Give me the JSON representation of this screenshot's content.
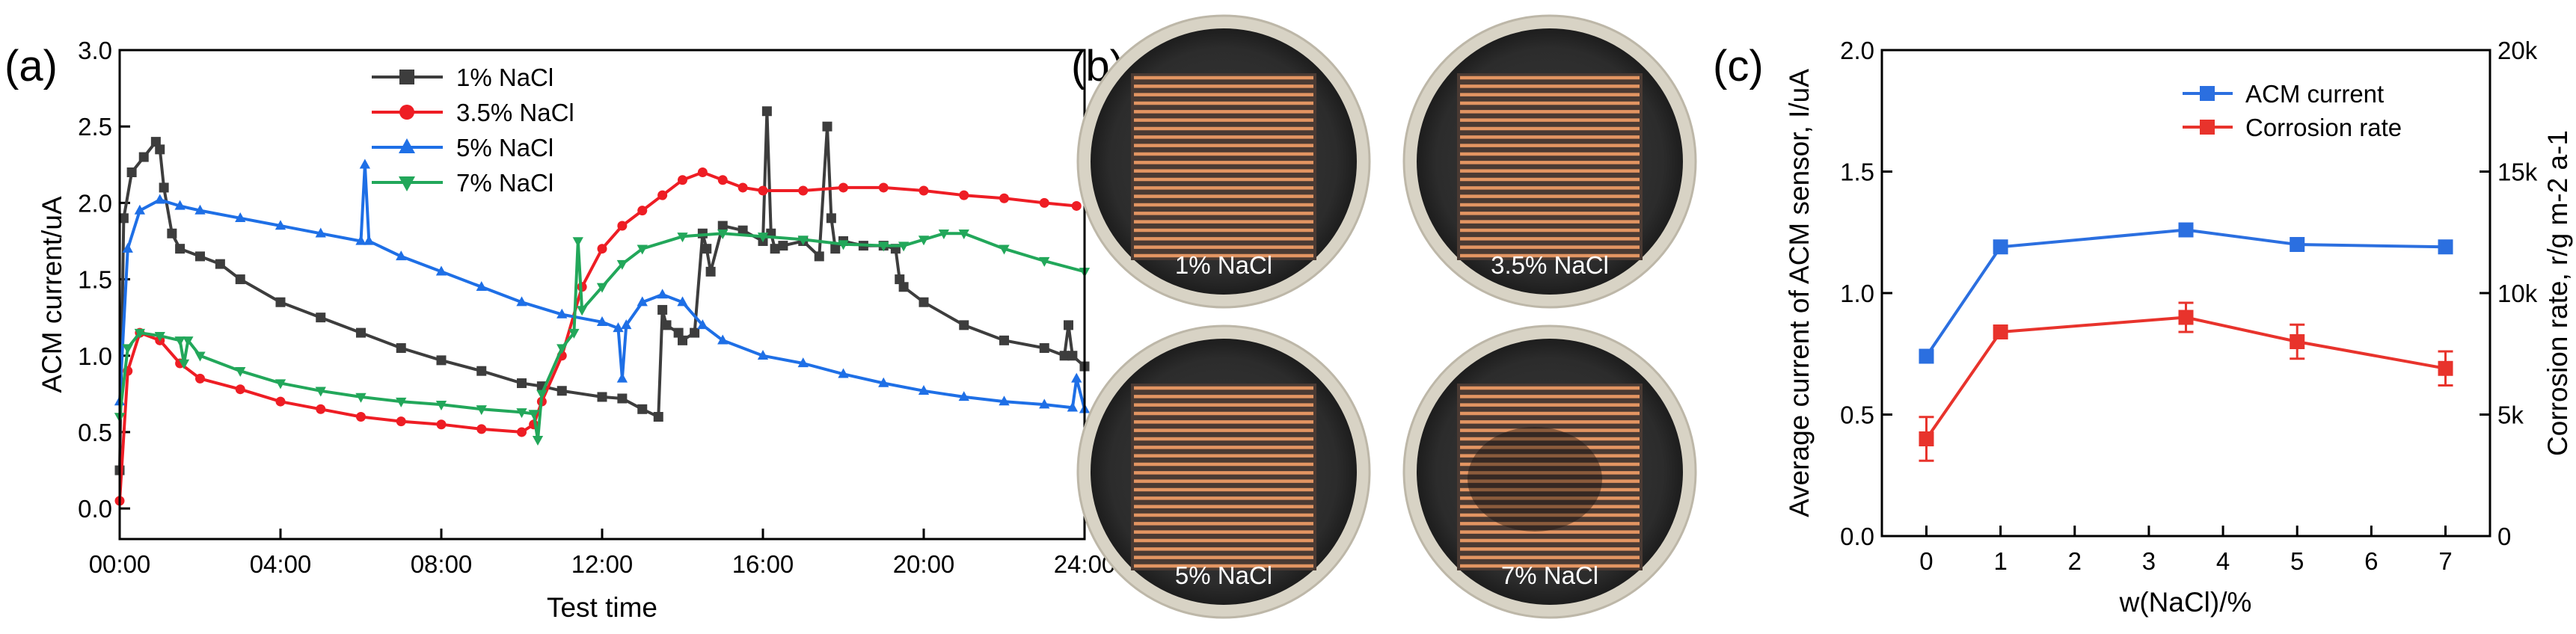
{
  "panels": {
    "a": "(a)",
    "b": "(b)",
    "c": "(c)"
  },
  "colors": {
    "black_series": "#3d3d3d",
    "red_series": "#ee1d24",
    "blue_series": "#1e6fe6",
    "green_series": "#22a75a",
    "acm_blue": "#2b6fe0",
    "corr_red": "#e8332c",
    "dish_rim": "#d8d3c5",
    "dish_inner": "#333333",
    "copper": "#e39562"
  },
  "photos": [
    {
      "label": "1% NaCl"
    },
    {
      "label": "3.5% NaCl"
    },
    {
      "label": "5% NaCl"
    },
    {
      "label": "7% NaCl"
    }
  ],
  "chart_data": [
    {
      "panel": "a",
      "type": "line",
      "title": "",
      "xlabel": "Test time",
      "ylabel": "ACM current/uA",
      "x_unit": "hours",
      "xlim": [
        0,
        24
      ],
      "ylim": [
        -0.2,
        3.0
      ],
      "x_ticks": [
        0,
        4,
        8,
        12,
        16,
        20,
        24
      ],
      "x_tick_labels": [
        "00:00",
        "04:00",
        "08:00",
        "12:00",
        "16:00",
        "20:00",
        "24:00"
      ],
      "y_ticks": [
        0.0,
        0.5,
        1.0,
        1.5,
        2.0,
        2.5,
        3.0
      ],
      "y_tick_labels": [
        "0.0",
        "0.5",
        "1.0",
        "1.5",
        "2.0",
        "2.5",
        "3.0"
      ],
      "legend_position": "top-center",
      "series": [
        {
          "name": "1% NaCl",
          "marker": "square",
          "color": "#3d3d3d",
          "x": [
            0,
            0.1,
            0.3,
            0.6,
            0.9,
            1.0,
            1.1,
            1.3,
            1.5,
            2.0,
            2.5,
            3,
            4,
            5,
            6,
            7,
            8,
            9,
            10,
            10.5,
            11,
            12,
            12.5,
            13,
            13.4,
            13.5,
            13.6,
            13.9,
            14,
            14.3,
            14.5,
            14.6,
            14.7,
            15,
            15.5,
            16,
            16.1,
            16.2,
            16.3,
            16.5,
            17,
            17.4,
            17.6,
            17.7,
            17.8,
            18,
            18.5,
            19,
            19.3,
            19.4,
            19.5,
            20,
            21,
            22,
            23,
            23.5,
            23.6,
            23.7,
            24
          ],
          "y": [
            0.25,
            1.9,
            2.2,
            2.3,
            2.4,
            2.35,
            2.1,
            1.8,
            1.7,
            1.65,
            1.6,
            1.5,
            1.35,
            1.25,
            1.15,
            1.05,
            0.97,
            0.9,
            0.82,
            0.8,
            0.77,
            0.73,
            0.72,
            0.65,
            0.6,
            1.3,
            1.2,
            1.15,
            1.1,
            1.15,
            1.8,
            1.7,
            1.55,
            1.85,
            1.82,
            1.75,
            2.6,
            1.8,
            1.7,
            1.72,
            1.75,
            1.65,
            2.5,
            1.9,
            1.7,
            1.75,
            1.72,
            1.72,
            1.7,
            1.5,
            1.45,
            1.35,
            1.2,
            1.1,
            1.05,
            1.0,
            1.2,
            1.0,
            0.93
          ]
        },
        {
          "name": "3.5% NaCl",
          "marker": "circle",
          "color": "#ee1d24",
          "x": [
            0,
            0.2,
            0.5,
            1,
            1.5,
            2,
            3,
            4,
            5,
            6,
            7,
            8,
            9,
            10,
            10.3,
            10.5,
            11,
            11.5,
            12,
            12.5,
            13,
            13.5,
            14,
            14.5,
            15,
            15.5,
            16,
            17,
            18,
            19,
            20,
            21,
            22,
            23,
            23.8
          ],
          "y": [
            0.05,
            0.9,
            1.15,
            1.1,
            0.95,
            0.85,
            0.78,
            0.7,
            0.65,
            0.6,
            0.57,
            0.55,
            0.52,
            0.5,
            0.55,
            0.7,
            1.0,
            1.45,
            1.7,
            1.85,
            1.95,
            2.05,
            2.15,
            2.2,
            2.15,
            2.1,
            2.08,
            2.08,
            2.1,
            2.1,
            2.08,
            2.05,
            2.03,
            2.0,
            1.98
          ]
        },
        {
          "name": "5% NaCl",
          "marker": "triangle-up",
          "color": "#1e6fe6",
          "x": [
            0,
            0.2,
            0.5,
            1,
            1.5,
            2,
            3,
            4,
            5,
            6,
            6.1,
            6.2,
            7,
            8,
            9,
            10,
            11,
            12,
            12.4,
            12.5,
            12.6,
            13,
            13.5,
            14,
            14.5,
            15,
            16,
            17,
            18,
            19,
            20,
            21,
            22,
            23,
            23.7,
            23.8,
            24
          ],
          "y": [
            0.7,
            1.7,
            1.95,
            2.02,
            1.98,
            1.95,
            1.9,
            1.85,
            1.8,
            1.75,
            2.25,
            1.75,
            1.65,
            1.55,
            1.45,
            1.35,
            1.27,
            1.22,
            1.18,
            0.85,
            1.2,
            1.35,
            1.4,
            1.35,
            1.2,
            1.1,
            1.0,
            0.95,
            0.88,
            0.82,
            0.77,
            0.73,
            0.7,
            0.68,
            0.66,
            0.85,
            0.65
          ]
        },
        {
          "name": "7% NaCl",
          "marker": "triangle-down",
          "color": "#22a75a",
          "x": [
            0,
            0.2,
            0.5,
            1,
            1.5,
            1.6,
            1.7,
            2,
            3,
            4,
            5,
            6,
            7,
            8,
            9,
            10,
            10.3,
            10.4,
            10.5,
            11,
            11.3,
            11.4,
            11.5,
            12,
            12.5,
            13,
            14,
            15,
            16,
            17,
            18,
            19,
            19.5,
            20,
            20.5,
            21,
            22,
            23,
            24
          ],
          "y": [
            0.6,
            1.05,
            1.15,
            1.13,
            1.1,
            0.95,
            1.1,
            1.0,
            0.9,
            0.82,
            0.77,
            0.73,
            0.7,
            0.68,
            0.65,
            0.63,
            0.62,
            0.45,
            0.75,
            1.05,
            1.15,
            1.75,
            1.3,
            1.45,
            1.6,
            1.7,
            1.78,
            1.8,
            1.78,
            1.76,
            1.73,
            1.72,
            1.72,
            1.76,
            1.8,
            1.8,
            1.7,
            1.62,
            1.55
          ]
        }
      ]
    },
    {
      "panel": "c",
      "type": "line",
      "title": "",
      "xlabel": "w(NaCl)/%",
      "ylabel": "Average current of ACM sensor, I/uA",
      "y2label": "Corrosion rate, r/g m-2 a-1",
      "xlim": [
        -0.6,
        7.6
      ],
      "ylim": [
        0,
        2.0
      ],
      "y2lim": [
        0,
        20000
      ],
      "x_ticks": [
        0,
        1,
        2,
        3,
        4,
        5,
        6,
        7
      ],
      "x_tick_labels": [
        "0",
        "1",
        "2",
        "3",
        "4",
        "5",
        "6",
        "7"
      ],
      "y_ticks": [
        0.0,
        0.5,
        1.0,
        1.5,
        2.0
      ],
      "y_tick_labels": [
        "0.0",
        "0.5",
        "1.0",
        "1.5",
        "2.0"
      ],
      "y2_ticks": [
        0,
        5000,
        10000,
        15000,
        20000
      ],
      "y2_tick_labels": [
        "0",
        "5k",
        "10k",
        "15k",
        "20k"
      ],
      "legend_position": "top-right",
      "series": [
        {
          "name": "ACM current",
          "axis": "left",
          "marker": "square",
          "color": "#2b6fe0",
          "x": [
            0,
            1,
            3.5,
            5,
            7
          ],
          "y": [
            0.74,
            1.19,
            1.26,
            1.2,
            1.19
          ],
          "error": [
            0,
            0,
            0,
            0,
            0
          ]
        },
        {
          "name": "Corrosion rate",
          "axis": "right",
          "marker": "square",
          "color": "#e8332c",
          "x": [
            0,
            1,
            3.5,
            5,
            7
          ],
          "y": [
            4000,
            8400,
            9000,
            8000,
            6900
          ],
          "error": [
            900,
            0,
            600,
            700,
            700
          ]
        }
      ]
    }
  ]
}
